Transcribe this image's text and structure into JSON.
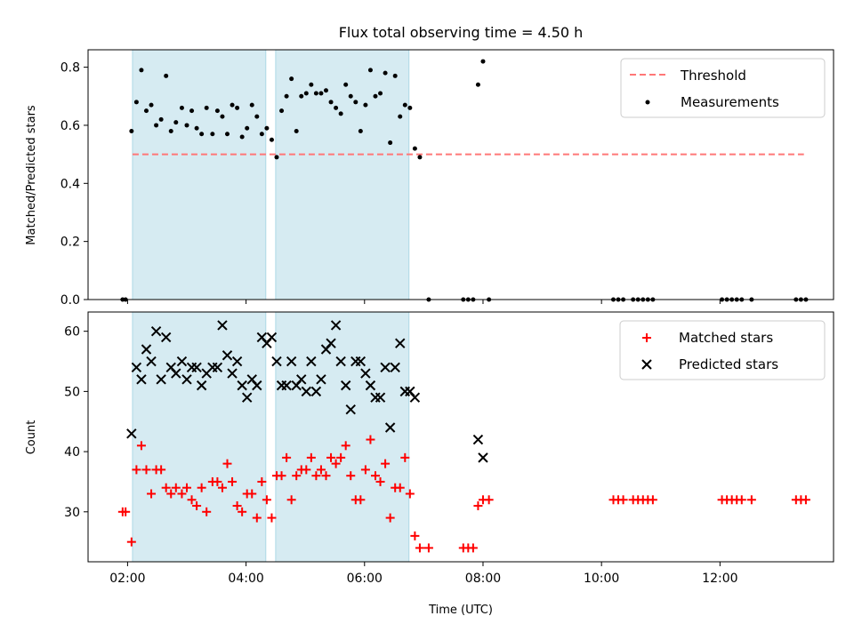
{
  "chart_data": [
    {
      "type": "scatter",
      "title": "Flux total observing time = 4.50 h",
      "xlabel": "",
      "ylabel": "Matched/Predicted stars",
      "xlim": [
        "01:20",
        "13:55"
      ],
      "ylim": [
        0,
        0.86
      ],
      "yticks": [
        0.0,
        0.2,
        0.4,
        0.6,
        0.8
      ],
      "yticklabels": [
        "0.0",
        "0.2",
        "0.4",
        "0.6",
        "0.8"
      ],
      "legend_position": "top-right",
      "shaded_intervals": [
        [
          "02:05",
          "04:20"
        ],
        [
          "04:30",
          "06:45"
        ]
      ],
      "threshold": {
        "name": "Threshold",
        "y": 0.5,
        "x_start": "02:05",
        "x_end": "13:25",
        "color": "#ff7777",
        "style": "dashed"
      },
      "series": [
        {
          "name": "Measurements",
          "color": "#000000",
          "points": [
            [
              "01:55",
              0.0
            ],
            [
              "01:58",
              0.0
            ],
            [
              "02:04",
              0.58
            ],
            [
              "02:09",
              0.68
            ],
            [
              "02:14",
              0.79
            ],
            [
              "02:19",
              0.65
            ],
            [
              "02:24",
              0.67
            ],
            [
              "02:29",
              0.6
            ],
            [
              "02:34",
              0.62
            ],
            [
              "02:39",
              0.77
            ],
            [
              "02:44",
              0.58
            ],
            [
              "02:49",
              0.61
            ],
            [
              "02:55",
              0.66
            ],
            [
              "03:00",
              0.6
            ],
            [
              "03:05",
              0.65
            ],
            [
              "03:10",
              0.59
            ],
            [
              "03:15",
              0.57
            ],
            [
              "03:20",
              0.66
            ],
            [
              "03:26",
              0.57
            ],
            [
              "03:31",
              0.65
            ],
            [
              "03:36",
              0.63
            ],
            [
              "03:41",
              0.57
            ],
            [
              "03:46",
              0.67
            ],
            [
              "03:51",
              0.66
            ],
            [
              "03:56",
              0.56
            ],
            [
              "04:01",
              0.59
            ],
            [
              "04:06",
              0.67
            ],
            [
              "04:11",
              0.63
            ],
            [
              "04:16",
              0.57
            ],
            [
              "04:21",
              0.59
            ],
            [
              "04:26",
              0.55
            ],
            [
              "04:31",
              0.49
            ],
            [
              "04:36",
              0.65
            ],
            [
              "04:41",
              0.7
            ],
            [
              "04:46",
              0.76
            ],
            [
              "04:51",
              0.58
            ],
            [
              "04:56",
              0.7
            ],
            [
              "05:01",
              0.71
            ],
            [
              "05:06",
              0.74
            ],
            [
              "05:11",
              0.71
            ],
            [
              "05:16",
              0.71
            ],
            [
              "05:21",
              0.72
            ],
            [
              "05:26",
              0.68
            ],
            [
              "05:31",
              0.66
            ],
            [
              "05:36",
              0.64
            ],
            [
              "05:41",
              0.74
            ],
            [
              "05:46",
              0.7
            ],
            [
              "05:51",
              0.68
            ],
            [
              "05:56",
              0.58
            ],
            [
              "06:01",
              0.67
            ],
            [
              "06:06",
              0.79
            ],
            [
              "06:11",
              0.7
            ],
            [
              "06:16",
              0.71
            ],
            [
              "06:21",
              0.78
            ],
            [
              "06:26",
              0.54
            ],
            [
              "06:31",
              0.77
            ],
            [
              "06:36",
              0.63
            ],
            [
              "06:41",
              0.67
            ],
            [
              "06:46",
              0.66
            ],
            [
              "06:51",
              0.52
            ],
            [
              "06:56",
              0.49
            ],
            [
              "07:05",
              0.0
            ],
            [
              "07:40",
              0.0
            ],
            [
              "07:45",
              0.0
            ],
            [
              "07:50",
              0.0
            ],
            [
              "07:55",
              0.74
            ],
            [
              "08:00",
              0.82
            ],
            [
              "08:06",
              0.0
            ],
            [
              "10:12",
              0.0
            ],
            [
              "10:17",
              0.0
            ],
            [
              "10:22",
              0.0
            ],
            [
              "10:32",
              0.0
            ],
            [
              "10:37",
              0.0
            ],
            [
              "10:42",
              0.0
            ],
            [
              "10:47",
              0.0
            ],
            [
              "10:52",
              0.0
            ],
            [
              "12:02",
              0.0
            ],
            [
              "12:07",
              0.0
            ],
            [
              "12:12",
              0.0
            ],
            [
              "12:17",
              0.0
            ],
            [
              "12:22",
              0.0
            ],
            [
              "12:32",
              0.0
            ],
            [
              "13:17",
              0.0
            ],
            [
              "13:22",
              0.0
            ],
            [
              "13:27",
              0.0
            ]
          ]
        }
      ]
    },
    {
      "type": "scatter",
      "title": "",
      "xlabel": "Time (UTC)",
      "ylabel": "Count",
      "xlim": [
        "01:20",
        "13:55"
      ],
      "ylim": [
        21.7,
        63.2
      ],
      "yticks": [
        30,
        40,
        50,
        60
      ],
      "yticklabels": [
        "30",
        "40",
        "50",
        "60"
      ],
      "xticks": [
        "02:00",
        "04:00",
        "06:00",
        "08:00",
        "10:00",
        "12:00"
      ],
      "xticklabels": [
        "02:00",
        "04:00",
        "06:00",
        "08:00",
        "10:00",
        "12:00"
      ],
      "legend_position": "top-right",
      "shaded_intervals": [
        [
          "02:05",
          "04:20"
        ],
        [
          "04:30",
          "06:45"
        ]
      ],
      "series": [
        {
          "name": "Matched stars",
          "color": "#ff0000",
          "marker": "plus",
          "points": [
            [
              "01:55",
              30
            ],
            [
              "01:58",
              30
            ],
            [
              "02:04",
              25
            ],
            [
              "02:09",
              37
            ],
            [
              "02:14",
              41
            ],
            [
              "02:19",
              37
            ],
            [
              "02:24",
              33
            ],
            [
              "02:29",
              37
            ],
            [
              "02:34",
              37
            ],
            [
              "02:39",
              34
            ],
            [
              "02:44",
              33
            ],
            [
              "02:49",
              34
            ],
            [
              "02:55",
              33
            ],
            [
              "03:00",
              34
            ],
            [
              "03:05",
              32
            ],
            [
              "03:10",
              31
            ],
            [
              "03:15",
              34
            ],
            [
              "03:20",
              30
            ],
            [
              "03:26",
              35
            ],
            [
              "03:31",
              35
            ],
            [
              "03:36",
              34
            ],
            [
              "03:41",
              38
            ],
            [
              "03:46",
              35
            ],
            [
              "03:51",
              31
            ],
            [
              "03:56",
              30
            ],
            [
              "04:01",
              33
            ],
            [
              "04:06",
              33
            ],
            [
              "04:11",
              29
            ],
            [
              "04:16",
              35
            ],
            [
              "04:21",
              32
            ],
            [
              "04:26",
              29
            ],
            [
              "04:31",
              36
            ],
            [
              "04:36",
              36
            ],
            [
              "04:41",
              39
            ],
            [
              "04:46",
              32
            ],
            [
              "04:51",
              36
            ],
            [
              "04:56",
              37
            ],
            [
              "05:01",
              37
            ],
            [
              "05:06",
              39
            ],
            [
              "05:11",
              36
            ],
            [
              "05:16",
              37
            ],
            [
              "05:21",
              36
            ],
            [
              "05:26",
              39
            ],
            [
              "05:31",
              38
            ],
            [
              "05:36",
              39
            ],
            [
              "05:41",
              41
            ],
            [
              "05:46",
              36
            ],
            [
              "05:51",
              32
            ],
            [
              "05:56",
              32
            ],
            [
              "06:01",
              37
            ],
            [
              "06:06",
              42
            ],
            [
              "06:11",
              36
            ],
            [
              "06:16",
              35
            ],
            [
              "06:21",
              38
            ],
            [
              "06:26",
              29
            ],
            [
              "06:31",
              34
            ],
            [
              "06:36",
              34
            ],
            [
              "06:41",
              39
            ],
            [
              "06:46",
              33
            ],
            [
              "06:51",
              26
            ],
            [
              "06:56",
              24
            ],
            [
              "07:05",
              24
            ],
            [
              "07:40",
              24
            ],
            [
              "07:45",
              24
            ],
            [
              "07:50",
              24
            ],
            [
              "07:55",
              31
            ],
            [
              "08:00",
              32
            ],
            [
              "08:06",
              32
            ],
            [
              "10:12",
              32
            ],
            [
              "10:17",
              32
            ],
            [
              "10:22",
              32
            ],
            [
              "10:32",
              32
            ],
            [
              "10:37",
              32
            ],
            [
              "10:42",
              32
            ],
            [
              "10:47",
              32
            ],
            [
              "10:52",
              32
            ],
            [
              "12:02",
              32
            ],
            [
              "12:07",
              32
            ],
            [
              "12:12",
              32
            ],
            [
              "12:17",
              32
            ],
            [
              "12:22",
              32
            ],
            [
              "12:32",
              32
            ],
            [
              "13:17",
              32
            ],
            [
              "13:22",
              32
            ],
            [
              "13:27",
              32
            ]
          ]
        },
        {
          "name": "Predicted stars",
          "color": "#000000",
          "marker": "x",
          "points": [
            [
              "02:04",
              43
            ],
            [
              "02:09",
              54
            ],
            [
              "02:14",
              52
            ],
            [
              "02:19",
              57
            ],
            [
              "02:24",
              55
            ],
            [
              "02:29",
              60
            ],
            [
              "02:34",
              52
            ],
            [
              "02:39",
              59
            ],
            [
              "02:44",
              54
            ],
            [
              "02:49",
              53
            ],
            [
              "02:55",
              55
            ],
            [
              "03:00",
              52
            ],
            [
              "03:05",
              54
            ],
            [
              "03:10",
              54
            ],
            [
              "03:15",
              51
            ],
            [
              "03:20",
              53
            ],
            [
              "03:26",
              54
            ],
            [
              "03:31",
              54
            ],
            [
              "03:36",
              61
            ],
            [
              "03:41",
              56
            ],
            [
              "03:46",
              53
            ],
            [
              "03:51",
              55
            ],
            [
              "03:56",
              51
            ],
            [
              "04:01",
              49
            ],
            [
              "04:06",
              52
            ],
            [
              "04:11",
              51
            ],
            [
              "04:16",
              59
            ],
            [
              "04:21",
              58
            ],
            [
              "04:26",
              59
            ],
            [
              "04:31",
              55
            ],
            [
              "04:36",
              51
            ],
            [
              "04:41",
              51
            ],
            [
              "04:46",
              55
            ],
            [
              "04:51",
              51
            ],
            [
              "04:56",
              52
            ],
            [
              "05:01",
              50
            ],
            [
              "05:06",
              55
            ],
            [
              "05:11",
              50
            ],
            [
              "05:16",
              52
            ],
            [
              "05:21",
              57
            ],
            [
              "05:26",
              58
            ],
            [
              "05:31",
              61
            ],
            [
              "05:36",
              55
            ],
            [
              "05:41",
              51
            ],
            [
              "05:46",
              47
            ],
            [
              "05:51",
              55
            ],
            [
              "05:56",
              55
            ],
            [
              "06:01",
              53
            ],
            [
              "06:06",
              51
            ],
            [
              "06:11",
              49
            ],
            [
              "06:16",
              49
            ],
            [
              "06:21",
              54
            ],
            [
              "06:26",
              44
            ],
            [
              "06:31",
              54
            ],
            [
              "06:36",
              58
            ],
            [
              "06:41",
              50
            ],
            [
              "06:46",
              50
            ],
            [
              "06:51",
              49
            ],
            [
              "07:55",
              42
            ],
            [
              "08:00",
              39
            ]
          ]
        }
      ]
    }
  ]
}
